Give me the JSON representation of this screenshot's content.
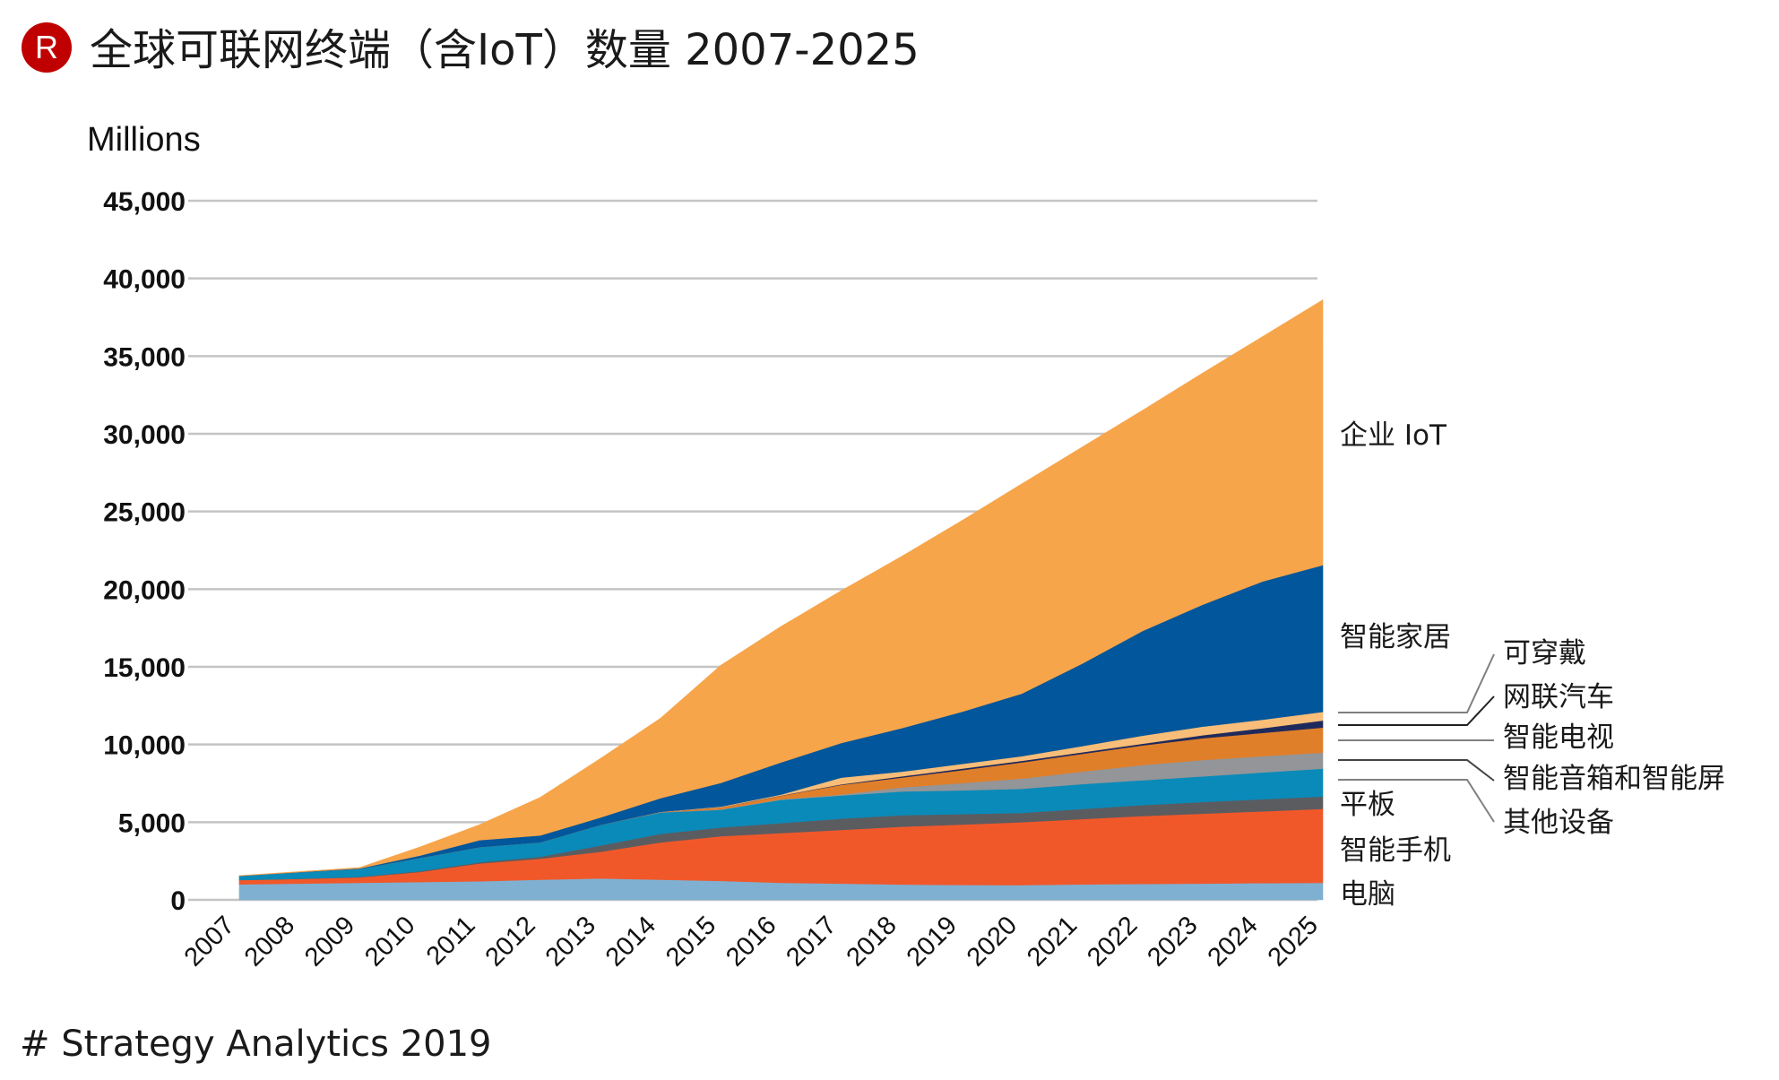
{
  "header": {
    "logo_letter": "R",
    "title": "全球可联网终端（含IoT）数量 2007-2025"
  },
  "footer": {
    "source": "# Strategy Analytics 2019"
  },
  "colors": {
    "logo": "#c00000",
    "grid": "#c4c4c4"
  },
  "chart_data": {
    "type": "area",
    "stacked": true,
    "title": "全球可联网终端（含IoT）数量 2007-2025",
    "xlabel": "",
    "ylabel": "Millions",
    "ylim": [
      0,
      45000
    ],
    "yticks": [
      0,
      5000,
      10000,
      15000,
      20000,
      25000,
      30000,
      35000,
      40000,
      45000
    ],
    "ytick_labels": [
      "0",
      "5,000",
      "10,000",
      "15,000",
      "20,000",
      "25,000",
      "30,000",
      "35,000",
      "40,000",
      "45,000"
    ],
    "grid": true,
    "legend": "direct labels at right",
    "categories": [
      "2007",
      "2008",
      "2009",
      "2010",
      "2011",
      "2012",
      "2013",
      "2014",
      "2015",
      "2016",
      "2017",
      "2018",
      "2019",
      "2020",
      "2021",
      "2022",
      "2023",
      "2024",
      "2025"
    ],
    "series": [
      {
        "name": "电脑",
        "color": "#7fb0d1",
        "values": [
          1000,
          1050,
          1100,
          1150,
          1200,
          1300,
          1380,
          1300,
          1220,
          1100,
          1050,
          990,
          960,
          950,
          1000,
          1030,
          1050,
          1080,
          1100
        ]
      },
      {
        "name": "智能手机",
        "color": "#f0582a",
        "values": [
          280,
          300,
          350,
          650,
          1150,
          1350,
          1720,
          2400,
          2880,
          3200,
          3450,
          3720,
          3890,
          4050,
          4200,
          4370,
          4500,
          4620,
          4760
        ]
      },
      {
        "name": "平板",
        "color": "#5b5c60",
        "values": [
          0,
          10,
          30,
          50,
          70,
          130,
          400,
          550,
          560,
          640,
          730,
          740,
          670,
          600,
          650,
          700,
          750,
          780,
          790
        ]
      },
      {
        "name": "其他设备",
        "color": "#0a8ab8",
        "values": [
          270,
          420,
          520,
          850,
          980,
          920,
          1330,
          1380,
          1140,
          1500,
          1490,
          1530,
          1530,
          1550,
          1600,
          1600,
          1650,
          1720,
          1800
        ]
      },
      {
        "name": "智能音箱和智能屏",
        "color": "#939598",
        "values": [
          0,
          0,
          0,
          0,
          0,
          0,
          0,
          10,
          30,
          40,
          60,
          260,
          470,
          660,
          800,
          980,
          1050,
          1050,
          1030
        ]
      },
      {
        "name": "智能电视",
        "color": "#e07f2a",
        "values": [
          0,
          0,
          0,
          0,
          0,
          0,
          0,
          20,
          120,
          220,
          620,
          630,
          830,
          1040,
          1150,
          1260,
          1400,
          1500,
          1610
        ]
      },
      {
        "name": "网联汽车",
        "color": "#1f2a5c",
        "values": [
          0,
          0,
          0,
          0,
          0,
          0,
          0,
          0,
          10,
          20,
          40,
          80,
          100,
          100,
          100,
          110,
          200,
          300,
          460
        ]
      },
      {
        "name": "可穿戴",
        "color": "#f8bd78",
        "values": [
          0,
          0,
          0,
          0,
          0,
          0,
          0,
          10,
          40,
          60,
          430,
          300,
          300,
          300,
          400,
          520,
          550,
          550,
          550
        ]
      },
      {
        "name": "智能家居",
        "color": "#02569b",
        "values": [
          0,
          10,
          30,
          150,
          450,
          450,
          470,
          880,
          1530,
          2070,
          2230,
          2800,
          3350,
          4030,
          5300,
          6730,
          7850,
          8900,
          9450
        ]
      },
      {
        "name": "企业 IoT",
        "color": "#f7a54a",
        "values": [
          10,
          30,
          50,
          550,
          1000,
          2450,
          3800,
          5150,
          7570,
          8750,
          9800,
          11050,
          12300,
          13500,
          13940,
          14200,
          14900,
          15760,
          17070
        ]
      }
    ],
    "labels": {
      "enterprise": "企业 IoT",
      "home": "智能家居",
      "wearable": "可穿戴",
      "car": "网联汽车",
      "tv": "智能电视",
      "speaker": "智能音箱和智能屏",
      "other": "其他设备",
      "tablet": "平板",
      "phone": "智能手机",
      "pc": "电脑"
    }
  }
}
